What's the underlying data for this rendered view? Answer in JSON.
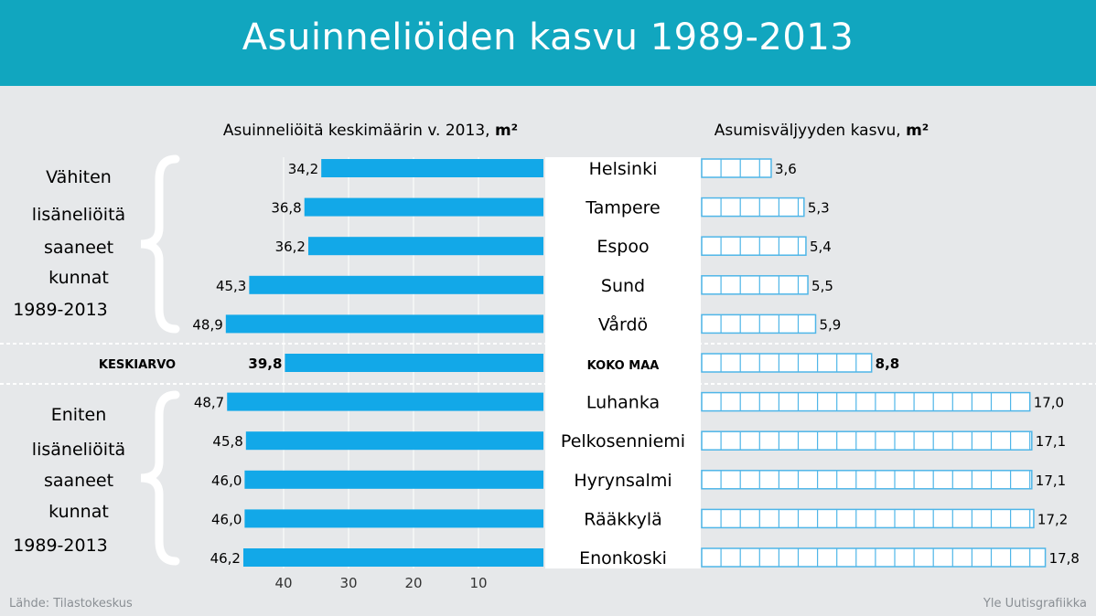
{
  "title": "Asuinneliöiden kasvu 1989-2013",
  "colors": {
    "header": "#11a6bf",
    "bar": "#12a8e8",
    "background": "#e6e8ea",
    "center": "#ffffff",
    "box_stroke": "#4fb6e8"
  },
  "chart_data": {
    "type": "bar",
    "left_panel": {
      "title": "Asuinneliöitä keskimäärin v. 2013,",
      "unit": "m²",
      "x_ticks": [
        "40",
        "30",
        "20",
        "10"
      ],
      "direction": "right-to-left",
      "values": [
        34.2,
        36.8,
        36.2,
        45.3,
        48.9,
        39.8,
        48.7,
        45.8,
        46.0,
        46.0,
        46.2
      ],
      "labels": [
        "34,2",
        "36,8",
        "36,2",
        "45,3",
        "48,9",
        "39,8",
        "48,7",
        "45,8",
        "46,0",
        "46,0",
        "46,2"
      ]
    },
    "right_panel": {
      "title": "Asumisväljyyden kasvu,",
      "unit": "m²",
      "values": [
        3.6,
        5.3,
        5.4,
        5.5,
        5.9,
        8.8,
        17.0,
        17.1,
        17.1,
        17.2,
        17.8
      ],
      "labels": [
        "3,6",
        "5,3",
        "5,4",
        "5,5",
        "5,9",
        "8,8",
        "17,0",
        "17,1",
        "17,1",
        "17,2",
        "17,8"
      ]
    },
    "categories": [
      "Helsinki",
      "Tampere",
      "Espoo",
      "Sund",
      "Vårdö",
      "KOKO MAA",
      "Luhanka",
      "Pelkosenniemi",
      "Hyrynsalmi",
      "Rääkkylä",
      "Enonkoski"
    ],
    "average_row_label": "KESKIARVO",
    "groups": [
      {
        "label": [
          "Vähiten",
          "lisäneliöitä",
          "saaneet",
          "kunnat",
          "1989-2013"
        ]
      },
      {
        "label": [
          "Eniten",
          "lisäneliöitä",
          "saaneet",
          "kunnat",
          "1989-2013"
        ]
      }
    ]
  },
  "source": "Lähde: Tilastokeskus",
  "credit": "Yle Uutisgrafiikka"
}
